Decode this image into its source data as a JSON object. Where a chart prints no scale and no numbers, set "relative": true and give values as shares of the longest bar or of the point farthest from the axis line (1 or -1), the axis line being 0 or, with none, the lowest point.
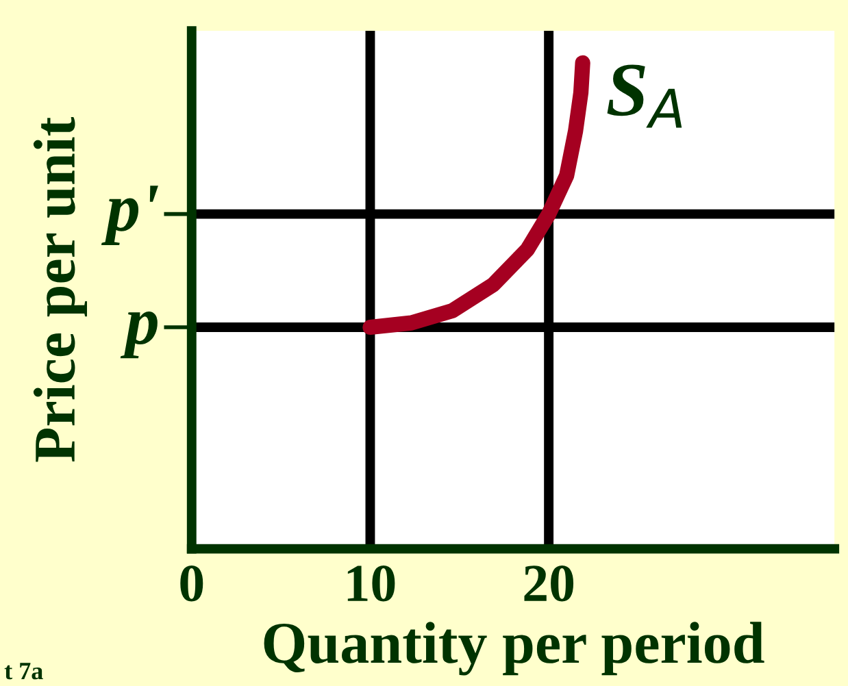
{
  "chart_data": {
    "type": "line",
    "xlabel": "Quantity per period",
    "ylabel": "Price per unit",
    "x": [
      10,
      12.3,
      14.6,
      16.9,
      18.8,
      20,
      21,
      21.5,
      21.8,
      21.9
    ],
    "series": [
      {
        "name": "S$_{A}$",
        "color": "#a50021",
        "values": [
          0.456,
          0.465,
          0.49,
          0.544,
          0.616,
          0.689,
          0.768,
          0.86,
          0.939,
          1
        ]
      }
    ],
    "relative": true,
    "xlim": [
      0,
      36
    ],
    "xticks": [
      0,
      10,
      20
    ],
    "ref_lines": [
      {
        "axis": "y",
        "value": 0.456,
        "label": "p",
        "color": "#000000"
      },
      {
        "axis": "y",
        "value": 0.689,
        "label": "p'",
        "color": "#000000"
      },
      {
        "axis": "x",
        "value": 10,
        "color": "#000000"
      },
      {
        "axis": "x",
        "value": 20,
        "color": "#000000"
      }
    ],
    "annotations": [
      "t 7a"
    ],
    "grid": false,
    "legend": false,
    "line_style": "solid"
  }
}
